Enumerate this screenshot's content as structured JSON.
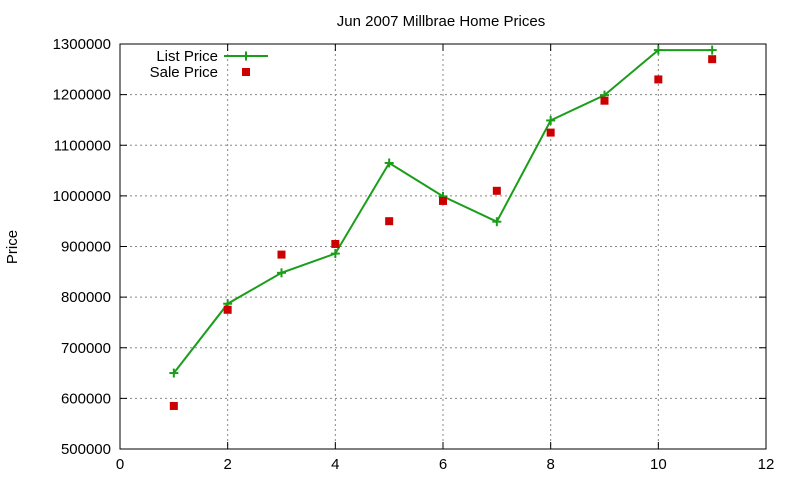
{
  "chart_data": {
    "type": "line",
    "title": "Jun 2007 Millbrae Home Prices",
    "xlabel": "",
    "ylabel": "Price",
    "xlim": [
      0,
      12
    ],
    "ylim": [
      500000,
      1300000
    ],
    "x_ticks": [
      0,
      2,
      4,
      6,
      8,
      10,
      12
    ],
    "y_ticks": [
      500000,
      600000,
      700000,
      800000,
      900000,
      1000000,
      1100000,
      1200000,
      1300000
    ],
    "grid": true,
    "legend_position": "top-left",
    "series": [
      {
        "name": "List Price",
        "style": "line+plus",
        "color": "#1a9e1a",
        "x": [
          1,
          2,
          3,
          4,
          5,
          6,
          7,
          8,
          9,
          10,
          11
        ],
        "y": [
          650000,
          787000,
          848000,
          886000,
          1065000,
          999000,
          949000,
          1149000,
          1199000,
          1288000,
          1288000
        ]
      },
      {
        "name": "Sale Price",
        "style": "square",
        "color": "#cc0000",
        "x": [
          1,
          2,
          3,
          4,
          5,
          6,
          7,
          8,
          9,
          10,
          11
        ],
        "y": [
          585000,
          775000,
          884000,
          905000,
          950000,
          990000,
          1010000,
          1125000,
          1188000,
          1230000,
          1270000
        ]
      }
    ]
  }
}
